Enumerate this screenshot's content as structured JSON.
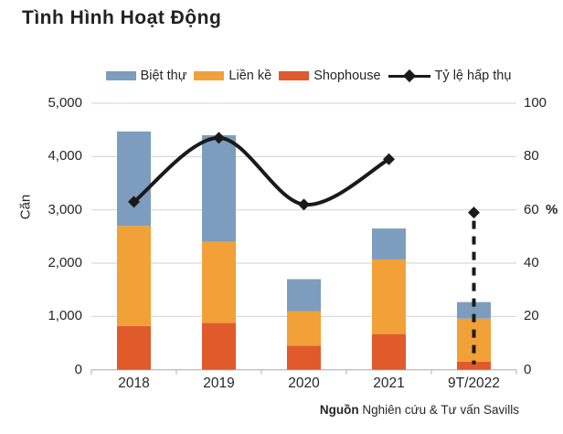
{
  "title": "Tình Hình Hoạt Động",
  "source": {
    "label": "Nguồn",
    "text": " Nghiên cứu & Tư vấn Savills"
  },
  "colors": {
    "biet_thu": "#7C9DBD",
    "lien_ke": "#F1A138",
    "shophouse": "#E05A2B",
    "absorption_line": "#1A1A1A",
    "gridline": "#D9D9D9",
    "axis": "#BFBFBF",
    "text": "#262626"
  },
  "legend": [
    {
      "label": "Biệt thự",
      "type": "swatch",
      "color": "#7C9DBD"
    },
    {
      "label": "Liền kề",
      "type": "swatch",
      "color": "#F1A138"
    },
    {
      "label": "Shophouse",
      "type": "swatch",
      "color": "#E05A2B"
    },
    {
      "label": "Tỷ lệ hấp thụ",
      "type": "line-diamond",
      "color": "#1A1A1A"
    }
  ],
  "chart_data": {
    "type": "bar",
    "subtype": "stacked-bars-with-line",
    "categories": [
      "2018",
      "2019",
      "2020",
      "2021",
      "9T/2022"
    ],
    "series": [
      {
        "name": "Shophouse",
        "color": "#E05A2B",
        "values": [
          820,
          880,
          450,
          670,
          150
        ]
      },
      {
        "name": "Liền kề",
        "color": "#F1A138",
        "values": [
          1880,
          1520,
          650,
          1400,
          810
        ]
      },
      {
        "name": "Biệt thự",
        "color": "#7C9DBD",
        "values": [
          1770,
          2000,
          600,
          580,
          310
        ]
      }
    ],
    "bar_totals": [
      4470,
      4400,
      1700,
      2650,
      1270
    ],
    "line_series": {
      "name": "Tỷ lệ hấp thụ",
      "color": "#1A1A1A",
      "values": [
        63,
        87,
        62,
        79,
        59
      ],
      "axis": "right",
      "last_point_dashed_drop": true
    },
    "ylabel": "Căn",
    "y2label": "%",
    "ylim": [
      0,
      5000
    ],
    "y2lim": [
      0,
      100
    ],
    "yticks": [
      "5,000",
      "4,000",
      "3,000",
      "2,000",
      "1,000",
      "0"
    ],
    "y2ticks": [
      "100",
      "80",
      "60",
      "40",
      "20",
      "0"
    ],
    "grid": "horizontal",
    "legend_position": "top"
  }
}
